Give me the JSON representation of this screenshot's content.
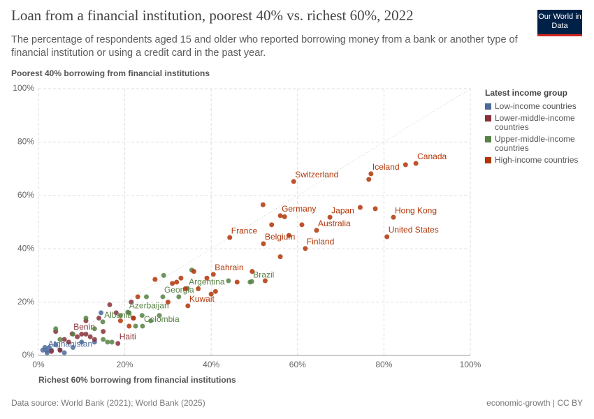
{
  "chart_data": {
    "type": "scatter",
    "title": "Loan from a financial institution, poorest 40% vs. richest 60%, 2022",
    "subtitle": "The percentage of respondents aged 15 and older who reported borrowing money from a bank or another type of financial institution or using a credit card in the past year.",
    "logo": "Our World in Data",
    "x_label": "Richest 60% borrowing from financial institutions",
    "y_label": "Poorest 40% borrowing from financial institutions",
    "legend_title": "Latest income group",
    "source": "Data source: World Bank (2021); World Bank (2025)",
    "license": "economic-growth | CC BY",
    "xlim": [
      0,
      100
    ],
    "ylim": [
      0,
      100
    ],
    "xticks": [
      {
        "value": 0,
        "label": "0%"
      },
      {
        "value": 20,
        "label": "20%"
      },
      {
        "value": 40,
        "label": "40%"
      },
      {
        "value": 60,
        "label": "60%"
      },
      {
        "value": 80,
        "label": "80%"
      },
      {
        "value": 100,
        "label": "100%"
      }
    ],
    "yticks": [
      {
        "value": 0,
        "label": "0%"
      },
      {
        "value": 20,
        "label": "20%"
      },
      {
        "value": 40,
        "label": "40%"
      },
      {
        "value": 60,
        "label": "60%"
      },
      {
        "value": 80,
        "label": "80%"
      },
      {
        "value": 100,
        "label": "100%"
      }
    ],
    "grid": true,
    "series": [
      {
        "name": "Low-income countries",
        "color": "#4c6a9c",
        "x": [
          1.9,
          1,
          2,
          2.5,
          3,
          4,
          5,
          6,
          8,
          10,
          13,
          14.5,
          1.5
        ],
        "values": [
          1.8,
          2,
          1,
          3,
          2,
          4,
          2,
          1,
          3,
          5,
          5,
          16,
          3
        ],
        "labels": [
          "Afghanistan",
          null,
          null,
          null,
          null,
          null,
          null,
          null,
          null,
          null,
          null,
          null,
          null
        ]
      },
      {
        "name": "Lower-middle-income countries",
        "color": "#883039",
        "x": [
          7.8,
          18.4,
          3,
          5,
          6,
          7,
          9,
          10,
          11,
          12,
          13,
          14,
          15,
          16.5,
          18,
          21.5,
          22,
          4,
          11
        ],
        "values": [
          8.1,
          4.5,
          1.5,
          2,
          6,
          5,
          7,
          8,
          13,
          7,
          6,
          14,
          9,
          19,
          16,
          20,
          14,
          9,
          8
        ],
        "labels": [
          "Benin",
          "Haiti",
          null,
          null,
          null,
          null,
          null,
          null,
          null,
          null,
          null,
          null,
          null,
          null,
          null,
          null,
          null,
          null,
          null
        ]
      },
      {
        "name": "Upper-middle-income countries",
        "color": "#578145",
        "x": [
          14.9,
          20.7,
          24.1,
          28.8,
          34.5,
          49.4,
          4,
          8,
          11,
          13,
          15,
          17,
          19,
          21,
          22.5,
          24,
          25,
          26,
          28,
          29,
          32.5,
          35.5,
          44,
          49,
          5,
          16
        ],
        "values": [
          12.6,
          16.2,
          11,
          22,
          25.1,
          27.7,
          10,
          8,
          14,
          10,
          6,
          5,
          15,
          16,
          11,
          15,
          22,
          13,
          15,
          30,
          22,
          32,
          28,
          27.5,
          6,
          5
        ],
        "labels": [
          "Albania",
          "Azerbaijan",
          "Colombia",
          "Georgia",
          "Argentina",
          "Brazil",
          null,
          null,
          null,
          null,
          null,
          null,
          null,
          null,
          null,
          null,
          null,
          null,
          null,
          null,
          null,
          null,
          null,
          null,
          null,
          null
        ]
      },
      {
        "name": "High-income countries",
        "color": "#b13507",
        "x": [
          87.4,
          77,
          59.1,
          56,
          67.5,
          82.2,
          64.4,
          44.3,
          80.7,
          52.1,
          61.8,
          40.5,
          34.6,
          52,
          57,
          54,
          61,
          58,
          74.5,
          78,
          76.5,
          85,
          56,
          49.5,
          52.5,
          46,
          41,
          40,
          37,
          34,
          33,
          32,
          27,
          31,
          23,
          22,
          21,
          36,
          39,
          30,
          19
        ],
        "values": [
          72,
          68.1,
          65.2,
          52.4,
          51.8,
          51.8,
          46.9,
          44.2,
          44.5,
          41.9,
          40.1,
          30.4,
          18.6,
          56.5,
          52,
          49,
          49,
          45,
          55.5,
          55,
          66,
          71.5,
          37,
          31.5,
          28,
          27.5,
          24,
          23,
          25,
          25,
          29,
          27.5,
          28.5,
          27,
          22,
          14,
          11,
          31.5,
          29,
          20,
          13
        ],
        "labels": [
          "Canada",
          "Iceland",
          "Switzerland",
          "Germany",
          "Japan",
          "Hong Kong",
          "Australia",
          "France",
          "United States",
          "Belgium",
          "Finland",
          "Bahrain",
          "Kuwait",
          null,
          null,
          null,
          null,
          null,
          null,
          null,
          null,
          null,
          null,
          null,
          null,
          null,
          null,
          null,
          null,
          null,
          null,
          null,
          null,
          null,
          null,
          null,
          null,
          null,
          null,
          null,
          null
        ]
      }
    ]
  }
}
